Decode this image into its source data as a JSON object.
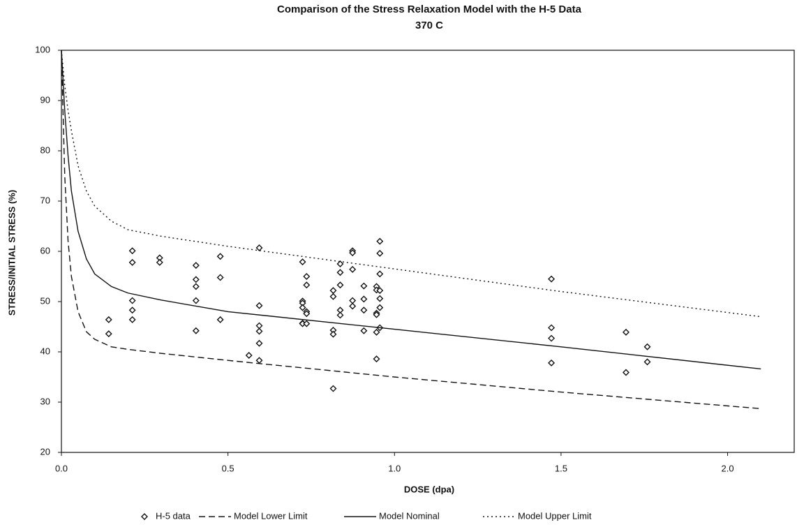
{
  "chart_data": {
    "type": "scatter",
    "title": "Comparison of the Stress Relaxation Model with the H-5 Data",
    "subtitle": "370 C",
    "x_label": "DOSE (dpa)",
    "y_label": "STRESS/INITIAL STRESS (%)",
    "xlim": [
      0,
      2.2
    ],
    "ylim": [
      20,
      100
    ],
    "xticks": [
      {
        "value": 0,
        "label": "0.0"
      },
      {
        "value": 0.5,
        "label": "0.5"
      },
      {
        "value": 1,
        "label": "1.0"
      },
      {
        "value": 1.5,
        "label": "1.5"
      },
      {
        "value": 2,
        "label": "2.0"
      }
    ],
    "yticks": [
      20,
      30,
      40,
      50,
      60,
      70,
      80,
      90,
      100
    ],
    "grid": false,
    "legend": "bottom",
    "series": [
      {
        "name": "H-5 data",
        "color": "#111111",
        "mode": "markers",
        "x": [
          0.142,
          0.142,
          0.213,
          0.213,
          0.213,
          0.213,
          0.213,
          0.295,
          0.295,
          0.404,
          0.404,
          0.404,
          0.404,
          0.404,
          0.477,
          0.477,
          0.477,
          0.563,
          0.594,
          0.594,
          0.594,
          0.594,
          0.594,
          0.594,
          0.724,
          0.724,
          0.724,
          0.724,
          0.724,
          0.724,
          0.736,
          0.736,
          0.736,
          0.736,
          0.736,
          0.816,
          0.816,
          0.816,
          0.816,
          0.816,
          0.837,
          0.837,
          0.837,
          0.837,
          0.837,
          0.874,
          0.874,
          0.874,
          0.874,
          0.874,
          0.908,
          0.908,
          0.908,
          0.908,
          0.946,
          0.946,
          0.946,
          0.946,
          0.946,
          0.946,
          0.956,
          0.956,
          0.956,
          0.956,
          0.956,
          0.956,
          0.956,
          1.471,
          1.471,
          1.471,
          1.471,
          1.695,
          1.695,
          1.759,
          1.759
        ],
        "values": [
          46.4,
          43.6,
          60.1,
          57.8,
          50.2,
          48.3,
          46.4,
          58.7,
          57.8,
          57.2,
          54.4,
          53.0,
          50.2,
          44.2,
          59.0,
          54.8,
          46.4,
          39.3,
          60.7,
          49.2,
          45.2,
          44.1,
          41.7,
          38.3,
          57.9,
          50.1,
          49.7,
          48.8,
          45.7,
          45.6,
          55.0,
          53.3,
          48.0,
          47.6,
          45.6,
          52.2,
          51.0,
          44.3,
          43.5,
          32.7,
          57.5,
          55.8,
          53.3,
          48.3,
          47.3,
          60.1,
          59.7,
          56.4,
          50.2,
          49.1,
          53.1,
          50.5,
          48.3,
          44.2,
          53.0,
          52.3,
          47.7,
          47.4,
          43.9,
          38.6,
          62.0,
          59.6,
          55.5,
          52.2,
          50.6,
          48.8,
          44.8,
          54.5,
          44.8,
          42.7,
          37.8,
          43.9,
          35.9,
          41.0,
          38.0
        ]
      },
      {
        "name": "Model Lower Limit",
        "color": "#111111",
        "mode": "line",
        "dash": "dashed",
        "x": [
          0,
          0.01,
          0.02,
          0.03,
          0.05,
          0.075,
          0.1,
          0.15,
          0.2,
          0.3,
          0.5,
          1.0,
          1.5,
          2.1
        ],
        "values": [
          100,
          75,
          62,
          55,
          48,
          44,
          42.5,
          41,
          40.5,
          39.7,
          38.3,
          35,
          32,
          28.7
        ]
      },
      {
        "name": "Model Nominal",
        "color": "#111111",
        "mode": "line",
        "dash": "solid",
        "x": [
          0,
          0.01,
          0.02,
          0.03,
          0.05,
          0.075,
          0.1,
          0.15,
          0.2,
          0.3,
          0.5,
          1.0,
          1.5,
          2.1
        ],
        "values": [
          100,
          88,
          79,
          72,
          64,
          58.5,
          55.5,
          53,
          51.7,
          50.3,
          48,
          44.5,
          41,
          36.6
        ]
      },
      {
        "name": "Model Upper Limit",
        "color": "#111111",
        "mode": "line",
        "dash": "dotted",
        "x": [
          0,
          0.01,
          0.02,
          0.03,
          0.05,
          0.075,
          0.1,
          0.15,
          0.2,
          0.3,
          0.5,
          1.0,
          1.5,
          2.1
        ],
        "values": [
          100,
          93,
          88,
          84,
          77,
          72,
          69,
          66,
          64.3,
          63,
          61,
          56.5,
          52,
          47
        ]
      }
    ]
  }
}
